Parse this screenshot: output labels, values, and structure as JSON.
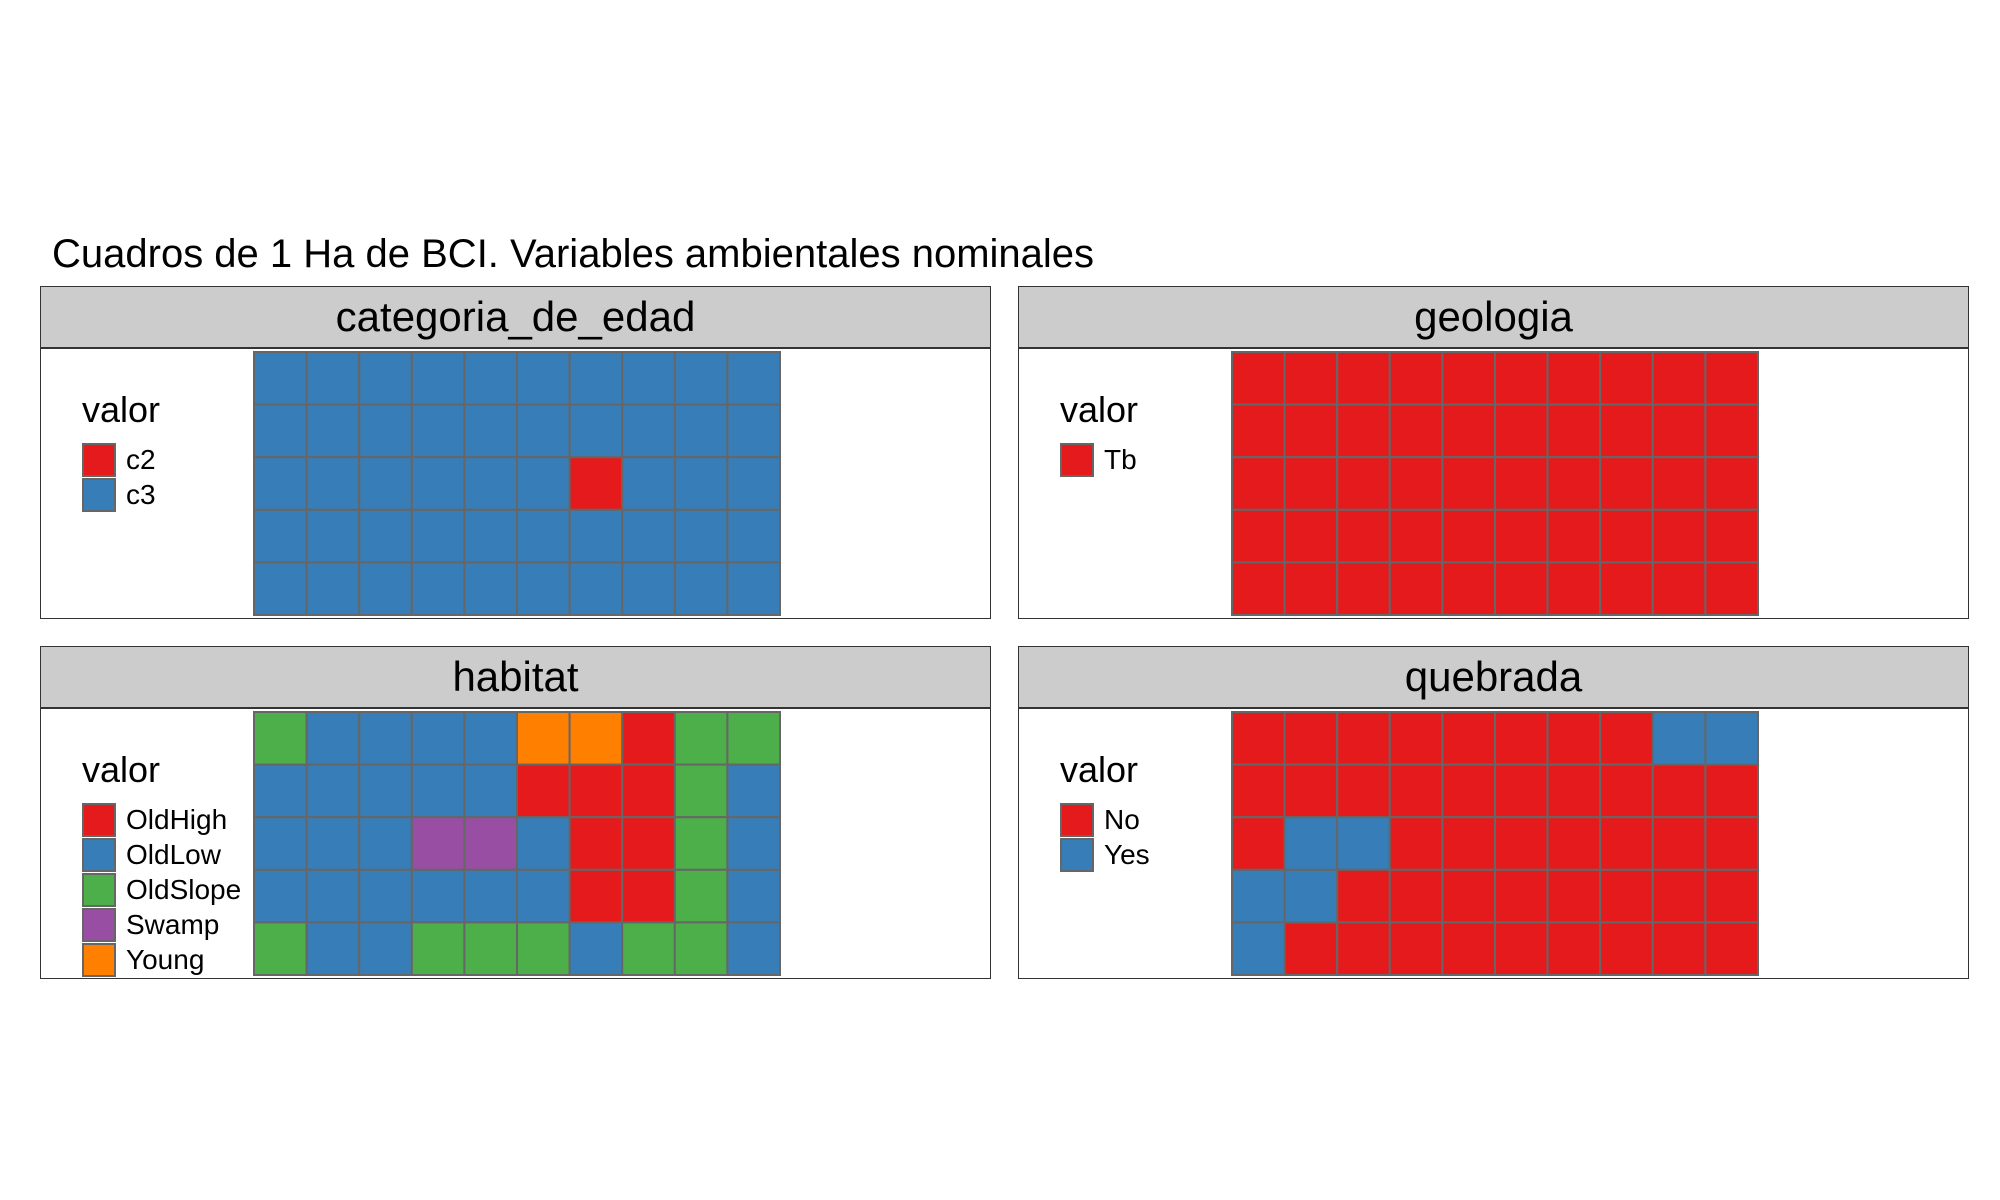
{
  "title": "Cuadros de 1 Ha de BCI. Variables ambientales nominales",
  "palette": {
    "red": "#e41a1c",
    "blue": "#377eb8",
    "green": "#4daf4a",
    "purple": "#984ea3",
    "orange": "#ff7f00",
    "tile_border": "#666666",
    "strip_bg": "#cccccc"
  },
  "chart_data": [
    {
      "type": "heatmap",
      "facet": "categoria_de_edad",
      "legend": {
        "title": "valor",
        "categories": [
          {
            "label": "c2",
            "color": "#e41a1c"
          },
          {
            "label": "c3",
            "color": "#377eb8"
          }
        ]
      },
      "grid_rows_top_to_bottom": [
        [
          "c3",
          "c3",
          "c3",
          "c3",
          "c3",
          "c3",
          "c3",
          "c3",
          "c3",
          "c3"
        ],
        [
          "c3",
          "c3",
          "c3",
          "c3",
          "c3",
          "c3",
          "c3",
          "c3",
          "c3",
          "c3"
        ],
        [
          "c3",
          "c3",
          "c3",
          "c3",
          "c3",
          "c3",
          "c2",
          "c3",
          "c3",
          "c3"
        ],
        [
          "c3",
          "c3",
          "c3",
          "c3",
          "c3",
          "c3",
          "c3",
          "c3",
          "c3",
          "c3"
        ],
        [
          "c3",
          "c3",
          "c3",
          "c3",
          "c3",
          "c3",
          "c3",
          "c3",
          "c3",
          "c3"
        ]
      ]
    },
    {
      "type": "heatmap",
      "facet": "geologia",
      "legend": {
        "title": "valor",
        "categories": [
          {
            "label": "Tb",
            "color": "#e41a1c"
          }
        ]
      },
      "grid_rows_top_to_bottom": [
        [
          "Tb",
          "Tb",
          "Tb",
          "Tb",
          "Tb",
          "Tb",
          "Tb",
          "Tb",
          "Tb",
          "Tb"
        ],
        [
          "Tb",
          "Tb",
          "Tb",
          "Tb",
          "Tb",
          "Tb",
          "Tb",
          "Tb",
          "Tb",
          "Tb"
        ],
        [
          "Tb",
          "Tb",
          "Tb",
          "Tb",
          "Tb",
          "Tb",
          "Tb",
          "Tb",
          "Tb",
          "Tb"
        ],
        [
          "Tb",
          "Tb",
          "Tb",
          "Tb",
          "Tb",
          "Tb",
          "Tb",
          "Tb",
          "Tb",
          "Tb"
        ],
        [
          "Tb",
          "Tb",
          "Tb",
          "Tb",
          "Tb",
          "Tb",
          "Tb",
          "Tb",
          "Tb",
          "Tb"
        ]
      ]
    },
    {
      "type": "heatmap",
      "facet": "habitat",
      "legend": {
        "title": "valor",
        "categories": [
          {
            "label": "OldHigh",
            "color": "#e41a1c"
          },
          {
            "label": "OldLow",
            "color": "#377eb8"
          },
          {
            "label": "OldSlope",
            "color": "#4daf4a"
          },
          {
            "label": "Swamp",
            "color": "#984ea3"
          },
          {
            "label": "Young",
            "color": "#ff7f00"
          }
        ]
      },
      "grid_rows_top_to_bottom": [
        [
          "OldSlope",
          "OldLow",
          "OldLow",
          "OldLow",
          "OldLow",
          "Young",
          "Young",
          "OldHigh",
          "OldSlope",
          "OldSlope"
        ],
        [
          "OldLow",
          "OldLow",
          "OldLow",
          "OldLow",
          "OldLow",
          "OldHigh",
          "OldHigh",
          "OldHigh",
          "OldSlope",
          "OldLow"
        ],
        [
          "OldLow",
          "OldLow",
          "OldLow",
          "Swamp",
          "Swamp",
          "OldLow",
          "OldHigh",
          "OldHigh",
          "OldSlope",
          "OldLow"
        ],
        [
          "OldLow",
          "OldLow",
          "OldLow",
          "OldLow",
          "OldLow",
          "OldLow",
          "OldHigh",
          "OldHigh",
          "OldSlope",
          "OldLow"
        ],
        [
          "OldSlope",
          "OldLow",
          "OldLow",
          "OldSlope",
          "OldSlope",
          "OldSlope",
          "OldLow",
          "OldSlope",
          "OldSlope",
          "OldLow"
        ]
      ]
    },
    {
      "type": "heatmap",
      "facet": "quebrada",
      "legend": {
        "title": "valor",
        "categories": [
          {
            "label": "No",
            "color": "#e41a1c"
          },
          {
            "label": "Yes",
            "color": "#377eb8"
          }
        ]
      },
      "grid_rows_top_to_bottom": [
        [
          "No",
          "No",
          "No",
          "No",
          "No",
          "No",
          "No",
          "No",
          "Yes",
          "Yes"
        ],
        [
          "No",
          "No",
          "No",
          "No",
          "No",
          "No",
          "No",
          "No",
          "No",
          "No"
        ],
        [
          "No",
          "Yes",
          "Yes",
          "No",
          "No",
          "No",
          "No",
          "No",
          "No",
          "No"
        ],
        [
          "Yes",
          "Yes",
          "No",
          "No",
          "No",
          "No",
          "No",
          "No",
          "No",
          "No"
        ],
        [
          "Yes",
          "No",
          "No",
          "No",
          "No",
          "No",
          "No",
          "No",
          "No",
          "No"
        ]
      ]
    }
  ]
}
